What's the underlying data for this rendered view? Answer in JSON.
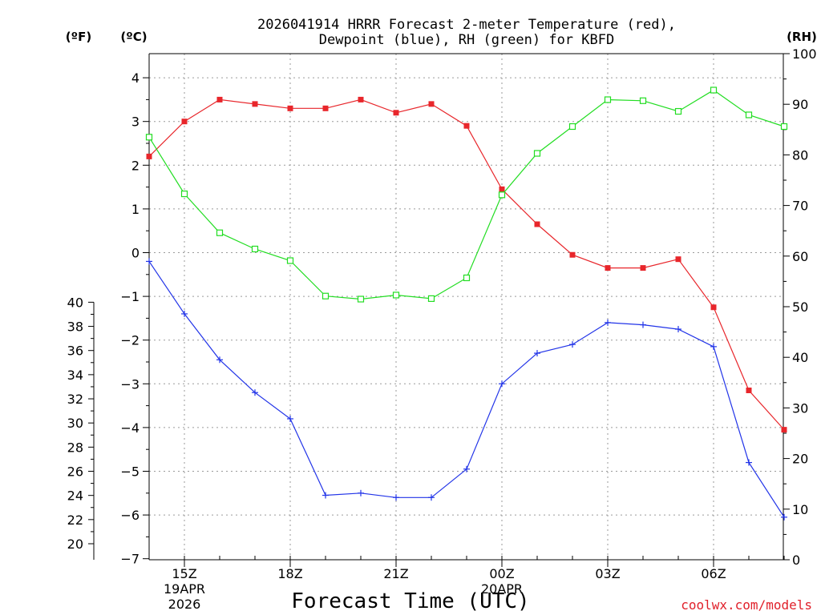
{
  "chart_data": {
    "type": "line",
    "title": "2026041914 HRRR Forecast 2-meter Temperature (red),",
    "subtitle": "Dewpoint (blue), RH (green) for KBFD",
    "xlabel": "Forecast Time (UTC)",
    "credit": "coolwx.com/models",
    "unit_left_outer": "(ºF)",
    "unit_left_inner": "(ºC)",
    "unit_right": "(RH)",
    "celsius_ylim": [
      -7,
      4.5
    ],
    "celsius_ticks": [
      "4",
      "3",
      "2",
      "1",
      "0",
      "−1",
      "−2",
      "−3",
      "−4",
      "−5",
      "−6",
      "−7"
    ],
    "fahrenheit_ticks": [
      "40",
      "38",
      "36",
      "34",
      "32",
      "30",
      "28",
      "26",
      "24",
      "22",
      "20"
    ],
    "rh_ticks": [
      "100",
      "90",
      "80",
      "70",
      "60",
      "50",
      "40",
      "30",
      "20",
      "10",
      "0"
    ],
    "x_hours": [
      14,
      15,
      16,
      17,
      18,
      19,
      20,
      21,
      22,
      23,
      24,
      25,
      26,
      27,
      28,
      29,
      30,
      31,
      32
    ],
    "x_ticks": [
      {
        "hour": 15,
        "label": "15Z",
        "sub1": "19APR",
        "sub2": "2026"
      },
      {
        "hour": 18,
        "label": "18Z",
        "sub1": "",
        "sub2": ""
      },
      {
        "hour": 21,
        "label": "21Z",
        "sub1": "",
        "sub2": ""
      },
      {
        "hour": 24,
        "label": "00Z",
        "sub1": "20APR",
        "sub2": ""
      },
      {
        "hour": 27,
        "label": "03Z",
        "sub1": "",
        "sub2": ""
      },
      {
        "hour": 30,
        "label": "06Z",
        "sub1": "",
        "sub2": ""
      }
    ],
    "series": [
      {
        "name": "Temperature",
        "units": "C",
        "color": "#e8262b",
        "marker": "filled-square",
        "values": [
          2.2,
          3.0,
          3.5,
          3.4,
          3.3,
          3.3,
          3.5,
          3.2,
          3.4,
          2.9,
          1.45,
          0.65,
          -0.05,
          -0.35,
          -0.35,
          -0.15,
          -1.25,
          -3.15,
          -4.05
        ]
      },
      {
        "name": "Dewpoint",
        "units": "C",
        "color": "#2234e8",
        "marker": "plus",
        "values": [
          -0.2,
          -1.4,
          -2.45,
          -3.2,
          -3.8,
          -5.55,
          -5.5,
          -5.6,
          -5.6,
          -4.95,
          -3.0,
          -2.3,
          -2.1,
          -1.6,
          -1.65,
          -1.75,
          -2.15,
          -4.8,
          -6.05
        ]
      },
      {
        "name": "RH",
        "units": "%",
        "color": "#22dd22",
        "marker": "open-square",
        "values": [
          83.5,
          72.3,
          64.6,
          61.4,
          59.1,
          52.1,
          51.5,
          52.3,
          51.6,
          55.7,
          72.1,
          80.3,
          85.6,
          90.9,
          90.7,
          88.6,
          92.8,
          87.9,
          85.6
        ]
      }
    ]
  }
}
